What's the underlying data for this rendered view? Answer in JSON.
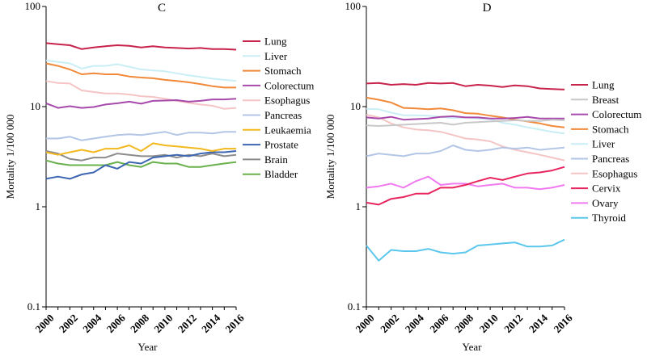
{
  "chart_data": [
    {
      "type": "line",
      "title": "C",
      "xlabel": "Year",
      "ylabel": "Mortality 1/100 000",
      "yscale": "log",
      "ylim": [
        0.1,
        100
      ],
      "yticks": [
        "0.1",
        "1",
        "10",
        "100"
      ],
      "xticks": [
        "2000",
        "2002",
        "2004",
        "2006",
        "2008",
        "2010",
        "2012",
        "2014",
        "2016"
      ],
      "x": [
        2000,
        2001,
        2002,
        2003,
        2004,
        2005,
        2006,
        2007,
        2008,
        2009,
        2010,
        2011,
        2012,
        2013,
        2014,
        2015,
        2016
      ],
      "legend_position": "right",
      "series": [
        {
          "name": "Lung",
          "color": "#C8234A",
          "values": [
            43,
            42,
            41,
            37.5,
            39,
            40,
            41,
            40.5,
            39,
            40,
            39,
            38.5,
            38,
            38.5,
            37.5,
            37.5,
            37
          ]
        },
        {
          "name": "Liver",
          "color": "#C9EEF5",
          "values": [
            29,
            28,
            27,
            24,
            25.5,
            25.5,
            26.5,
            25,
            23.5,
            23,
            22.5,
            21.5,
            20.5,
            19.8,
            19,
            18.5,
            18
          ]
        },
        {
          "name": "Stomach",
          "color": "#F0893A",
          "values": [
            27,
            25.5,
            23.5,
            21,
            21.5,
            21,
            21,
            20,
            19.5,
            19.2,
            18.5,
            18,
            17.5,
            16.8,
            16,
            15.5,
            15.5
          ]
        },
        {
          "name": "Colorectum",
          "color": "#A84AAC",
          "values": [
            10.8,
            9.7,
            10.1,
            9.7,
            9.9,
            10.5,
            10.8,
            11.2,
            10.7,
            11.4,
            11.5,
            11.6,
            11.2,
            11.4,
            11.8,
            11.8,
            12
          ]
        },
        {
          "name": "Esophagus",
          "color": "#F5C4C4",
          "values": [
            18,
            17.2,
            17,
            14.5,
            14,
            13.5,
            13.5,
            13.2,
            12.7,
            12.5,
            12,
            11.4,
            10.9,
            10.5,
            10.2,
            9.5,
            9.7
          ]
        },
        {
          "name": "Pancreas",
          "color": "#B3C6E6",
          "values": [
            4.8,
            4.8,
            5,
            4.6,
            4.8,
            5,
            5.2,
            5.3,
            5.2,
            5.4,
            5.6,
            5.2,
            5.5,
            5.5,
            5.4,
            5.6,
            5.6
          ]
        },
        {
          "name": "Leukaemia",
          "color": "#F2B81E",
          "values": [
            3.5,
            3.3,
            3.5,
            3.7,
            3.5,
            3.8,
            3.8,
            4.1,
            3.6,
            4.3,
            4.1,
            4,
            3.9,
            3.8,
            3.6,
            3.8,
            3.8
          ]
        },
        {
          "name": "Prostate",
          "color": "#3D66B2",
          "values": [
            1.9,
            2,
            1.9,
            2.1,
            2.2,
            2.6,
            2.4,
            2.8,
            2.7,
            3.1,
            3.2,
            3.3,
            3.2,
            3.4,
            3.5,
            3.5,
            3.6
          ]
        },
        {
          "name": "Brain",
          "color": "#8C8C8C",
          "values": [
            3.6,
            3.4,
            3,
            2.9,
            3.1,
            3.1,
            3.4,
            3.3,
            3.2,
            3.2,
            3.3,
            3.1,
            3.3,
            3.2,
            3.4,
            3.2,
            3.3
          ]
        },
        {
          "name": "Bladder",
          "color": "#6AB04C",
          "values": [
            2.9,
            2.7,
            2.6,
            2.6,
            2.6,
            2.6,
            2.8,
            2.6,
            2.5,
            2.8,
            2.7,
            2.7,
            2.5,
            2.5,
            2.6,
            2.7,
            2.8
          ]
        }
      ]
    },
    {
      "type": "line",
      "title": "D",
      "xlabel": "Year",
      "ylabel": "Mortality 1/100 000",
      "yscale": "log",
      "ylim": [
        0.1,
        100
      ],
      "yticks": [
        "0.1",
        "1",
        "10",
        "100"
      ],
      "xticks": [
        "2000",
        "2002",
        "2004",
        "2006",
        "2008",
        "2010",
        "2012",
        "2014",
        "2016"
      ],
      "x": [
        2000,
        2001,
        2002,
        2003,
        2004,
        2005,
        2006,
        2007,
        2008,
        2009,
        2010,
        2011,
        2012,
        2013,
        2014,
        2015,
        2016
      ],
      "legend_position": "right",
      "series": [
        {
          "name": "Lung",
          "color": "#C8234A",
          "values": [
            17,
            17.2,
            16.5,
            16.8,
            16.5,
            17.2,
            17,
            17.2,
            16,
            16.5,
            16.2,
            15.7,
            16.3,
            16,
            15.2,
            15,
            14.8
          ]
        },
        {
          "name": "Breast",
          "color": "#C8C8C8",
          "values": [
            6.5,
            6.4,
            6.5,
            6.6,
            6.7,
            6.8,
            6.9,
            6.6,
            6.9,
            7,
            7.1,
            7.2,
            7.3,
            7.2,
            7.2,
            7.4,
            7.3
          ]
        },
        {
          "name": "Colorectum",
          "color": "#A84AAC",
          "values": [
            7.8,
            7.6,
            7.9,
            7.4,
            7.5,
            7.6,
            7.9,
            8,
            7.8,
            7.8,
            7.6,
            7.6,
            7.7,
            7.9,
            7.6,
            7.6,
            7.6
          ]
        },
        {
          "name": "Stomach",
          "color": "#F0893A",
          "values": [
            12.3,
            11.7,
            11,
            9.7,
            9.6,
            9.4,
            9.6,
            9.2,
            8.6,
            8.5,
            8.1,
            7.8,
            7.4,
            7.1,
            6.8,
            6.4,
            6.2
          ]
        },
        {
          "name": "Liver",
          "color": "#C9EEF5",
          "values": [
            9.5,
            9.4,
            8.7,
            8.2,
            8.2,
            8.1,
            7.9,
            7.7,
            7.8,
            7.6,
            7.5,
            6.9,
            6.6,
            6.2,
            5.9,
            5.6,
            5.4
          ]
        },
        {
          "name": "Pancreas",
          "color": "#B3C6E6",
          "values": [
            3.2,
            3.4,
            3.3,
            3.2,
            3.4,
            3.4,
            3.6,
            4.1,
            3.7,
            3.6,
            3.7,
            3.9,
            3.8,
            3.9,
            3.7,
            3.8,
            3.9
          ]
        },
        {
          "name": "Esophagus",
          "color": "#F5C4C4",
          "values": [
            8.3,
            7.8,
            6.8,
            6.2,
            5.9,
            5.8,
            5.6,
            5.2,
            4.8,
            4.7,
            4.5,
            4,
            3.7,
            3.5,
            3.3,
            3.1,
            2.9
          ]
        },
        {
          "name": "Cervix",
          "color": "#E8255F",
          "values": [
            1.1,
            1.05,
            1.2,
            1.25,
            1.35,
            1.35,
            1.55,
            1.55,
            1.65,
            1.8,
            1.95,
            1.85,
            2,
            2.15,
            2.2,
            2.3,
            2.5
          ]
        },
        {
          "name": "Ovary",
          "color": "#F07AF0",
          "values": [
            1.55,
            1.6,
            1.7,
            1.55,
            1.8,
            2,
            1.65,
            1.7,
            1.7,
            1.6,
            1.65,
            1.7,
            1.55,
            1.55,
            1.5,
            1.55,
            1.65
          ]
        },
        {
          "name": "Thyroid",
          "color": "#5BC7EC",
          "values": [
            0.41,
            0.29,
            0.37,
            0.36,
            0.36,
            0.38,
            0.35,
            0.34,
            0.35,
            0.41,
            0.42,
            0.43,
            0.44,
            0.4,
            0.4,
            0.41,
            0.47
          ]
        }
      ]
    }
  ]
}
